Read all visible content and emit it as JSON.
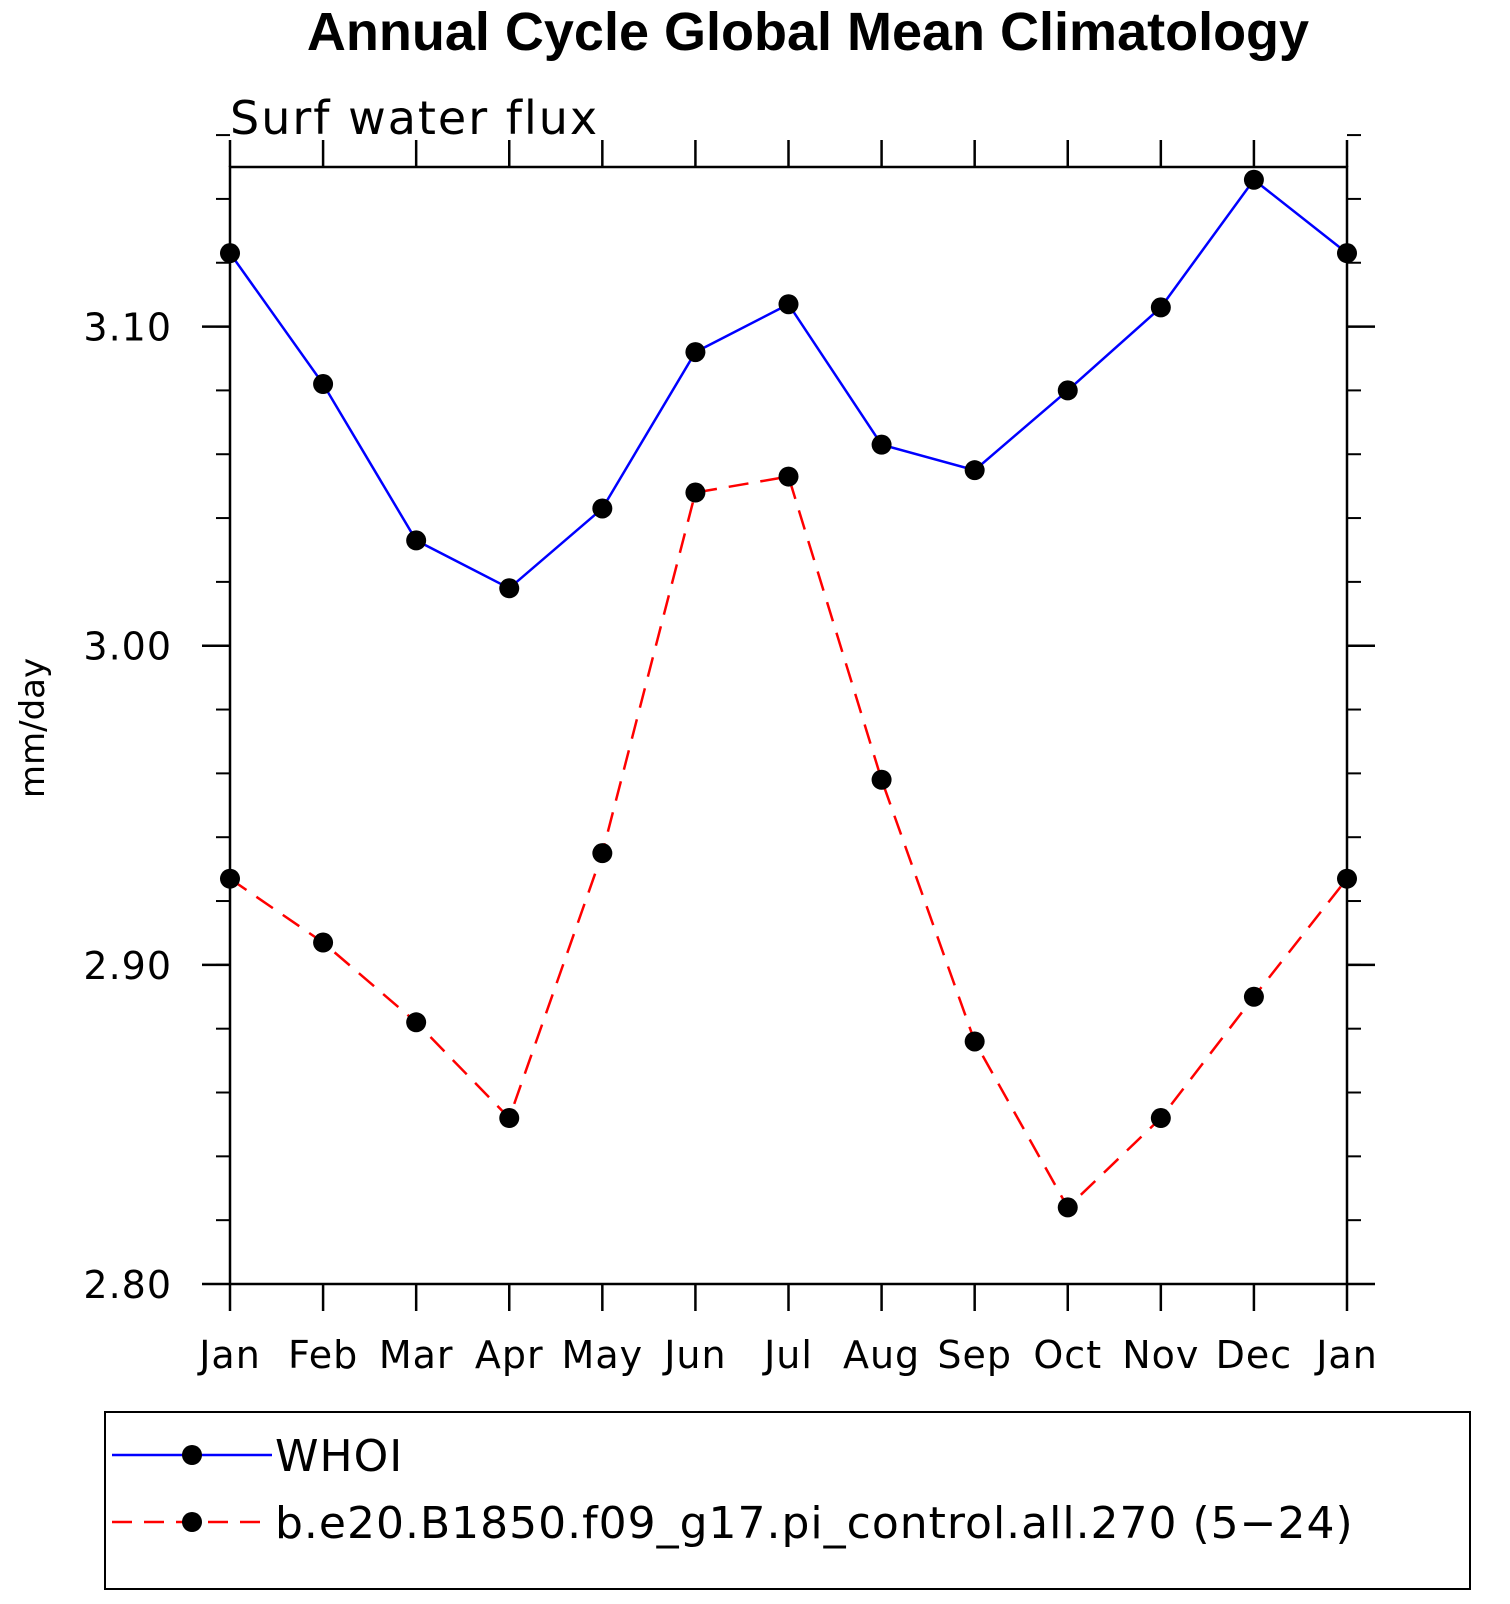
{
  "chart_data": {
    "type": "line",
    "title": "Annual Cycle Global Mean Climatology",
    "subtitle": "Surf water flux",
    "ylabel": "mm/day",
    "xlabel": "",
    "categories": [
      "Jan",
      "Feb",
      "Mar",
      "Apr",
      "May",
      "Jun",
      "Jul",
      "Aug",
      "Sep",
      "Oct",
      "Nov",
      "Dec",
      "Jan"
    ],
    "ylim": [
      2.8,
      3.15
    ],
    "yticks": [
      "2.80",
      "2.90",
      "3.00",
      "3.10"
    ],
    "ytick_values": [
      2.8,
      2.9,
      3.0,
      3.1
    ],
    "y_minor_step": 0.02,
    "grid": false,
    "legend_position": "bottom",
    "series": [
      {
        "name": "WHOI",
        "color": "#0000ff",
        "dash": "solid",
        "marker": "filled-circle",
        "values": [
          3.123,
          3.082,
          3.033,
          3.018,
          3.043,
          3.092,
          3.107,
          3.063,
          3.055,
          3.08,
          3.106,
          3.146,
          3.123
        ]
      },
      {
        "name": "b.e20.B1850.f09_g17.pi_control.all.270 (5−24)",
        "color": "#ff0000",
        "dash": "dashed",
        "marker": "filled-circle",
        "values": [
          2.927,
          2.907,
          2.882,
          2.852,
          2.935,
          3.048,
          3.053,
          2.958,
          2.876,
          2.824,
          2.852,
          2.89,
          2.927
        ]
      }
    ]
  }
}
